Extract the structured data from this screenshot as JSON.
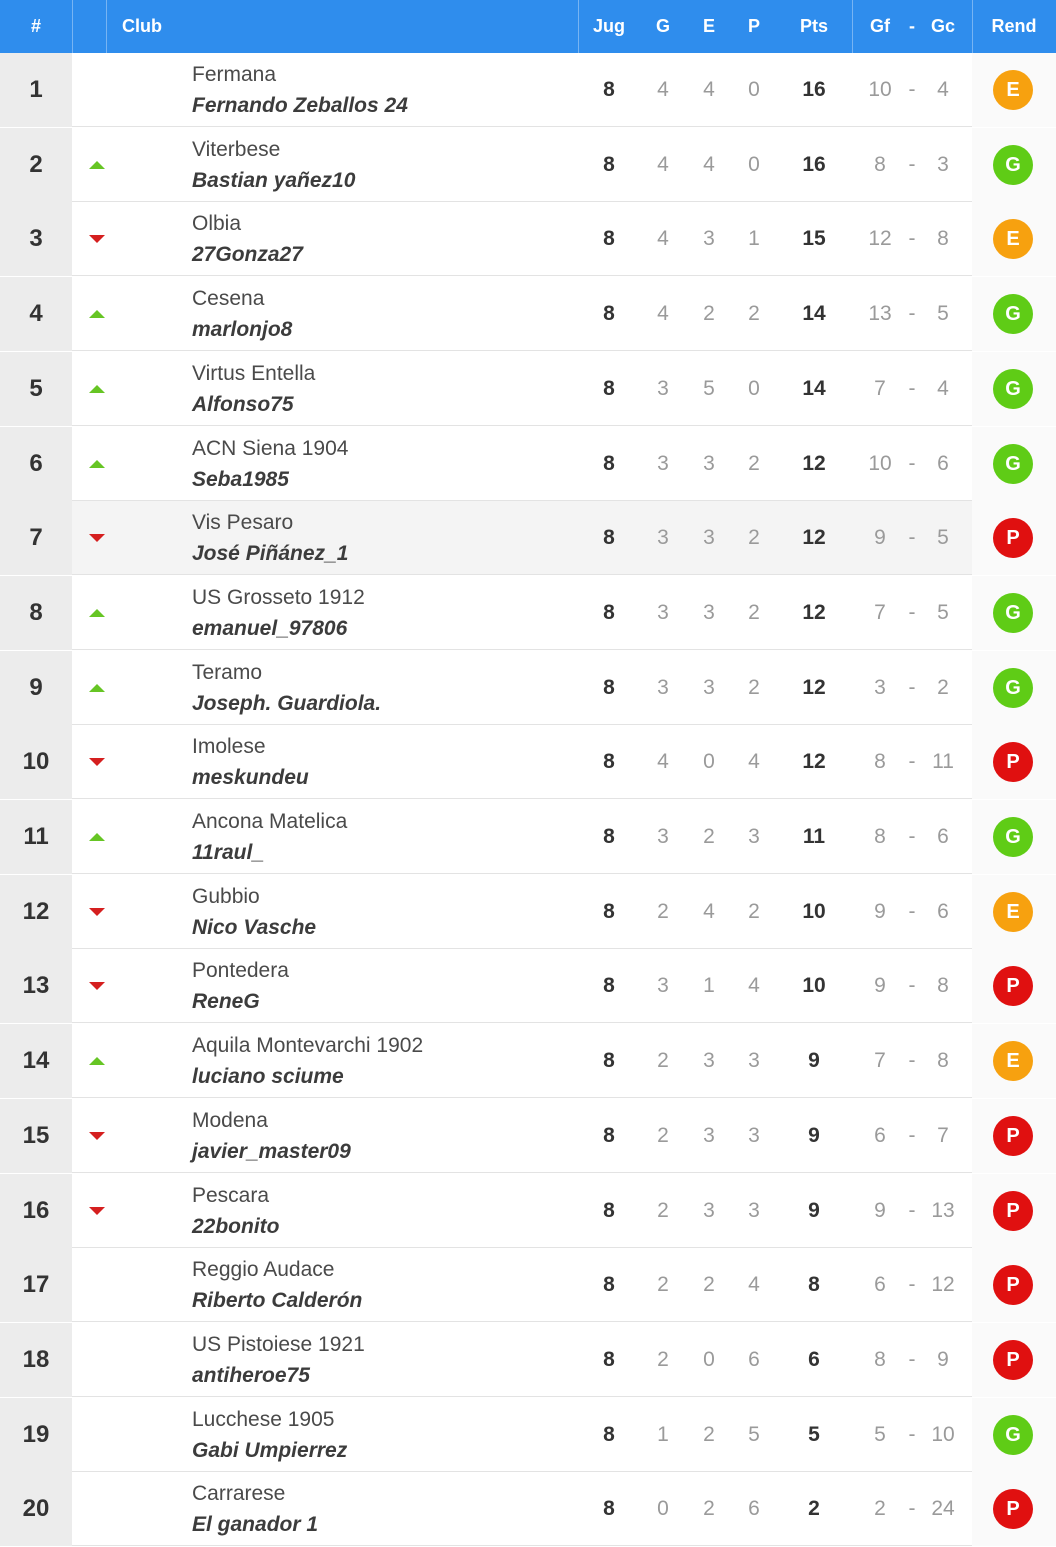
{
  "header": {
    "rank": "#",
    "club": "Club",
    "jug": "Jug",
    "g": "G",
    "e": "E",
    "p": "P",
    "pts": "Pts",
    "gf": "Gf",
    "sep": "-",
    "gc": "Gc",
    "rend": "Rend"
  },
  "colors": {
    "header": "#2f8ded",
    "E": "#f7a10f",
    "G": "#5fcc16",
    "P": "#e01010",
    "up": "#66c524",
    "down": "#d51f1f"
  },
  "icons": {
    "up": "triangle-up-icon",
    "down": "triangle-down-icon"
  },
  "highlight_row": 7,
  "rows": [
    {
      "pos": "1",
      "trend": "",
      "club": "Fermana",
      "manager": "Fernando Zeballos 24",
      "jug": "8",
      "g": "4",
      "e": "4",
      "p": "0",
      "pts": "16",
      "gf": "10",
      "sep": "-",
      "gc": "4",
      "rend": "E"
    },
    {
      "pos": "2",
      "trend": "up",
      "club": "Viterbese",
      "manager": "Bastian yañez10",
      "jug": "8",
      "g": "4",
      "e": "4",
      "p": "0",
      "pts": "16",
      "gf": "8",
      "sep": "-",
      "gc": "3",
      "rend": "G"
    },
    {
      "pos": "3",
      "trend": "down",
      "club": "Olbia",
      "manager": "27Gonza27",
      "jug": "8",
      "g": "4",
      "e": "3",
      "p": "1",
      "pts": "15",
      "gf": "12",
      "sep": "-",
      "gc": "8",
      "rend": "E"
    },
    {
      "pos": "4",
      "trend": "up",
      "club": "Cesena",
      "manager": "marlonjo8",
      "jug": "8",
      "g": "4",
      "e": "2",
      "p": "2",
      "pts": "14",
      "gf": "13",
      "sep": "-",
      "gc": "5",
      "rend": "G"
    },
    {
      "pos": "5",
      "trend": "up",
      "club": "Virtus Entella",
      "manager": "Alfonso75",
      "jug": "8",
      "g": "3",
      "e": "5",
      "p": "0",
      "pts": "14",
      "gf": "7",
      "sep": "-",
      "gc": "4",
      "rend": "G"
    },
    {
      "pos": "6",
      "trend": "up",
      "club": "ACN Siena 1904",
      "manager": "Seba1985",
      "jug": "8",
      "g": "3",
      "e": "3",
      "p": "2",
      "pts": "12",
      "gf": "10",
      "sep": "-",
      "gc": "6",
      "rend": "G"
    },
    {
      "pos": "7",
      "trend": "down",
      "club": "Vis Pesaro",
      "manager": "José Piñánez_1",
      "jug": "8",
      "g": "3",
      "e": "3",
      "p": "2",
      "pts": "12",
      "gf": "9",
      "sep": "-",
      "gc": "5",
      "rend": "P"
    },
    {
      "pos": "8",
      "trend": "up",
      "club": "US Grosseto 1912",
      "manager": "emanuel_97806",
      "jug": "8",
      "g": "3",
      "e": "3",
      "p": "2",
      "pts": "12",
      "gf": "7",
      "sep": "-",
      "gc": "5",
      "rend": "G"
    },
    {
      "pos": "9",
      "trend": "up",
      "club": "Teramo",
      "manager": "Joseph. Guardiola.",
      "jug": "8",
      "g": "3",
      "e": "3",
      "p": "2",
      "pts": "12",
      "gf": "3",
      "sep": "-",
      "gc": "2",
      "rend": "G"
    },
    {
      "pos": "10",
      "trend": "down",
      "club": "Imolese",
      "manager": "meskundeu",
      "jug": "8",
      "g": "4",
      "e": "0",
      "p": "4",
      "pts": "12",
      "gf": "8",
      "sep": "-",
      "gc": "11",
      "rend": "P"
    },
    {
      "pos": "11",
      "trend": "up",
      "club": "Ancona Matelica",
      "manager": "11raul_",
      "jug": "8",
      "g": "3",
      "e": "2",
      "p": "3",
      "pts": "11",
      "gf": "8",
      "sep": "-",
      "gc": "6",
      "rend": "G"
    },
    {
      "pos": "12",
      "trend": "down",
      "club": "Gubbio",
      "manager": "Nico Vasche",
      "jug": "8",
      "g": "2",
      "e": "4",
      "p": "2",
      "pts": "10",
      "gf": "9",
      "sep": "-",
      "gc": "6",
      "rend": "E"
    },
    {
      "pos": "13",
      "trend": "down",
      "club": "Pontedera",
      "manager": "ReneG",
      "jug": "8",
      "g": "3",
      "e": "1",
      "p": "4",
      "pts": "10",
      "gf": "9",
      "sep": "-",
      "gc": "8",
      "rend": "P"
    },
    {
      "pos": "14",
      "trend": "up",
      "club": "Aquila Montevarchi 1902",
      "manager": "luciano sciume",
      "jug": "8",
      "g": "2",
      "e": "3",
      "p": "3",
      "pts": "9",
      "gf": "7",
      "sep": "-",
      "gc": "8",
      "rend": "E"
    },
    {
      "pos": "15",
      "trend": "down",
      "club": "Modena",
      "manager": "javier_master09",
      "jug": "8",
      "g": "2",
      "e": "3",
      "p": "3",
      "pts": "9",
      "gf": "6",
      "sep": "-",
      "gc": "7",
      "rend": "P"
    },
    {
      "pos": "16",
      "trend": "down",
      "club": "Pescara",
      "manager": "22bonito",
      "jug": "8",
      "g": "2",
      "e": "3",
      "p": "3",
      "pts": "9",
      "gf": "9",
      "sep": "-",
      "gc": "13",
      "rend": "P"
    },
    {
      "pos": "17",
      "trend": "",
      "club": "Reggio Audace",
      "manager": "Riberto Calderón",
      "jug": "8",
      "g": "2",
      "e": "2",
      "p": "4",
      "pts": "8",
      "gf": "6",
      "sep": "-",
      "gc": "12",
      "rend": "P"
    },
    {
      "pos": "18",
      "trend": "",
      "club": "US Pistoiese 1921",
      "manager": "antiheroe75",
      "jug": "8",
      "g": "2",
      "e": "0",
      "p": "6",
      "pts": "6",
      "gf": "8",
      "sep": "-",
      "gc": "9",
      "rend": "P"
    },
    {
      "pos": "19",
      "trend": "",
      "club": "Lucchese 1905",
      "manager": "Gabi Umpierrez",
      "jug": "8",
      "g": "1",
      "e": "2",
      "p": "5",
      "pts": "5",
      "gf": "5",
      "sep": "-",
      "gc": "10",
      "rend": "G"
    },
    {
      "pos": "20",
      "trend": "",
      "club": "Carrarese",
      "manager": "El ganador 1",
      "jug": "8",
      "g": "0",
      "e": "2",
      "p": "6",
      "pts": "2",
      "gf": "2",
      "sep": "-",
      "gc": "24",
      "rend": "P"
    }
  ]
}
